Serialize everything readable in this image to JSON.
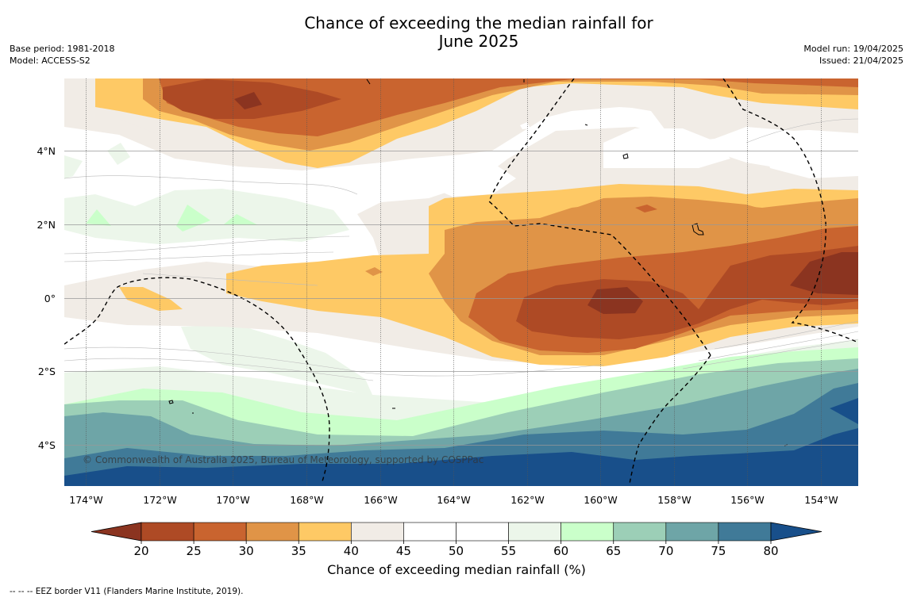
{
  "header": {
    "title_line1": "Chance of exceeding the median rainfall for",
    "title_line2": "June 2025",
    "base_period": "Base period: 1981-2018",
    "model": "Model: ACCESS-S2",
    "model_run": "Model run: 19/04/2025",
    "issued": "Issued: 21/04/2025"
  },
  "map": {
    "lon_ticks": [
      "174°W",
      "172°W",
      "170°W",
      "168°W",
      "166°W",
      "164°W",
      "162°W",
      "160°W",
      "158°W",
      "156°W",
      "154°W"
    ],
    "lat_ticks": [
      "4°N",
      "2°N",
      "0°",
      "2°S",
      "4°S"
    ],
    "copyright": "© Commonwealth of Australia 2025, Bureau of Meteorology, supported by COSPPac"
  },
  "colorbar": {
    "ticks": [
      "20",
      "25",
      "30",
      "35",
      "40",
      "45",
      "50",
      "55",
      "60",
      "65",
      "70",
      "75",
      "80"
    ],
    "colors": [
      "#8b3420",
      "#ae4a25",
      "#c9642f",
      "#e09447",
      "#fec965",
      "#f1ece6",
      "#ffffff",
      "#ffffff",
      "#ecf6ea",
      "#caffca",
      "#9ccfb7",
      "#6ea5a7",
      "#407a98",
      "#184f8a"
    ],
    "label": "Chance of exceeding median rainfall (%)"
  },
  "footnote": "--  --  -- EEZ border V11 (Flanders Marine Institute, 2019)."
}
